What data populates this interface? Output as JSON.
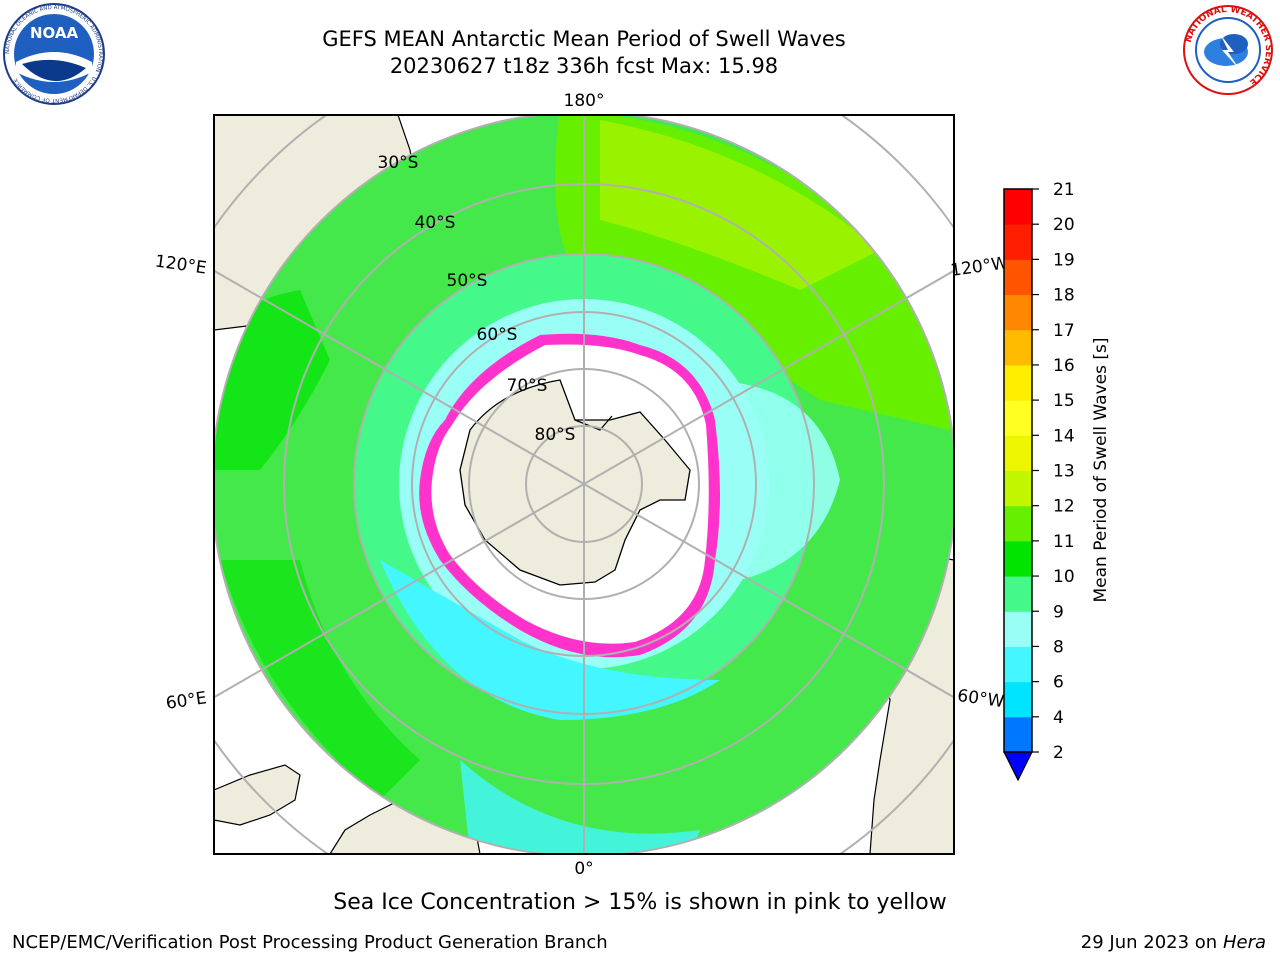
{
  "header": {
    "title_line1": "GEFS MEAN Antarctic Mean Period of Swell Waves",
    "title_line2": "20230627 t18z 336h fcst   Max: 15.98"
  },
  "logos": {
    "left": "NOAA",
    "left_ring_text": "NATIONAL OCEANIC AND ATMOSPHERIC ADMINISTRATION · U.S. DEPARTMENT OF COMMERCE",
    "right_ring_text": "NATIONAL WEATHER SERVICE"
  },
  "map": {
    "longitude_labels": {
      "top": "180°",
      "upper_left": "120°E",
      "upper_right": "120°W",
      "lower_left": "60°E",
      "lower_right": "60°W",
      "bottom": "0°"
    },
    "latitude_labels": [
      "30°S",
      "40°S",
      "50°S",
      "60°S",
      "70°S",
      "80°S"
    ],
    "colors": {
      "land": "#eeecdc",
      "ice": "#ffffff",
      "ice_edge": "#ff33cc",
      "grid": "#b0b0b0"
    }
  },
  "colorbar": {
    "label": "Mean Period of Swell Waves [s]",
    "ticks": [
      "2",
      "4",
      "6",
      "8",
      "9",
      "10",
      "11",
      "12",
      "13",
      "14",
      "15",
      "16",
      "17",
      "18",
      "19",
      "20",
      "21"
    ],
    "colors": [
      "#0000ff",
      "#0077ff",
      "#00e5ff",
      "#44f6ff",
      "#99fff6",
      "#44f98a",
      "#00e400",
      "#66f000",
      "#c2f500",
      "#eef500",
      "#ffff22",
      "#ffee00",
      "#ffbb00",
      "#ff8800",
      "#ff5500",
      "#ff1f00",
      "#ff0000"
    ]
  },
  "note": "Sea Ice Concentration > 15% is shown in pink to yellow",
  "footer": {
    "left": "NCEP/EMC/Verification Post Processing Product Generation Branch",
    "right_date": "29 Jun 2023 on",
    "right_host": "Hera"
  }
}
